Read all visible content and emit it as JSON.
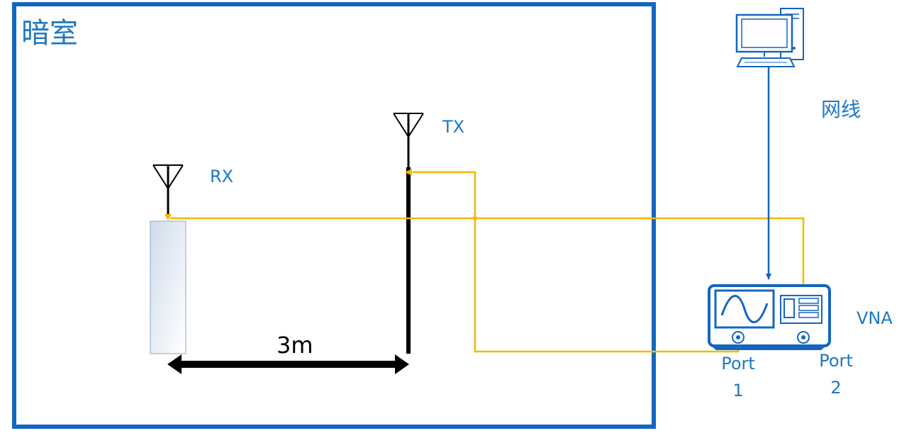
{
  "labels": {
    "chamber": "暗室",
    "tx": "TX",
    "rx": "RX",
    "distance": "3m",
    "network_cable": "网线",
    "vna": "VNA",
    "port1_word": "Port",
    "port1_num": "1",
    "port2_word": "Port",
    "port2_num": "2"
  },
  "colors": {
    "chamber_border": "#1565c0",
    "label_blue": "#1f78c1",
    "rf_cable": "#f5b800",
    "device_blue": "#1565c0",
    "antenna": "#000000"
  },
  "icons": {
    "computer": "desktop-computer-icon",
    "vna": "vector-network-analyzer-icon",
    "antenna": "antenna-icon"
  }
}
